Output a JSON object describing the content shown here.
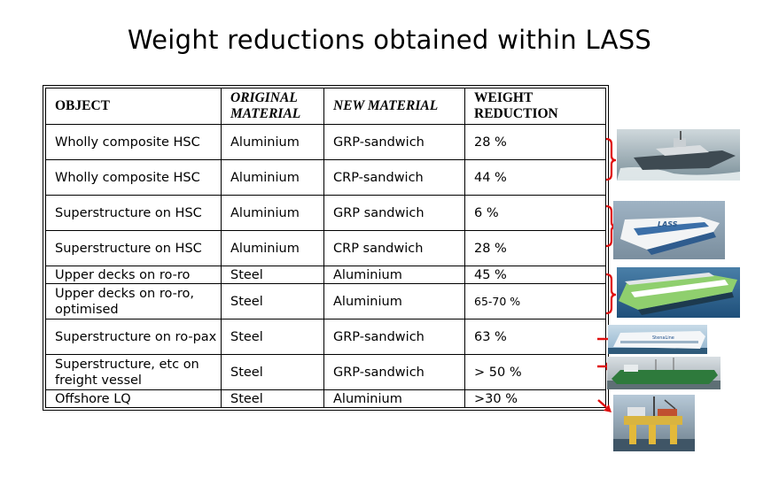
{
  "title": "Weight reductions obtained within LASS",
  "headers": {
    "object": "OBJECT",
    "original_material": "ORIGINAL MATERIAL",
    "new_material": "NEW MATERIAL",
    "weight_reduction": "WEIGHT REDUCTION"
  },
  "rows": [
    {
      "object": "Wholly composite HSC",
      "original": "Aluminium",
      "new": "GRP-sandwich",
      "reduction": "28 %"
    },
    {
      "object": "Wholly composite HSC",
      "original": "Aluminium",
      "new": "CRP-sandwich",
      "reduction": "44 %"
    },
    {
      "object": "Superstructure on HSC",
      "original": "Aluminium",
      "new": "GRP sandwich",
      "reduction": "6 %"
    },
    {
      "object": "Superstructure on HSC",
      "original": "Aluminium",
      "new": "CRP sandwich",
      "reduction": "28 %"
    },
    {
      "object": "Upper decks on ro-ro",
      "original": "Steel",
      "new": "Aluminium",
      "reduction": "45 %"
    },
    {
      "object": "Upper decks on ro-ro, optimised",
      "original": "Steel",
      "new": "Aluminium",
      "reduction": "65-70 %"
    },
    {
      "object": "Superstructure on ro-pax",
      "original": "Steel",
      "new": "GRP-sandwich",
      "reduction": "63 %"
    },
    {
      "object": "Superstructure, etc on freight vessel",
      "original": "Steel",
      "new": "GRP-sandwich",
      "reduction": "> 50 %"
    },
    {
      "object": "Offshore LQ",
      "original": "Steel",
      "new": "Aluminium",
      "reduction": ">30 %"
    }
  ],
  "photos": [
    {
      "name": "hsc-patrol-boat-photo"
    },
    {
      "name": "lass-catamaran-photo",
      "logo_text": "LASS"
    },
    {
      "name": "ro-ro-ferry-photo"
    },
    {
      "name": "ro-pax-ferry-photo",
      "logo_text": "StenaLine"
    },
    {
      "name": "freight-vessel-photo"
    },
    {
      "name": "offshore-platform-photo"
    }
  ],
  "colors": {
    "bracket": "#e01010",
    "arrow": "#e01010"
  }
}
